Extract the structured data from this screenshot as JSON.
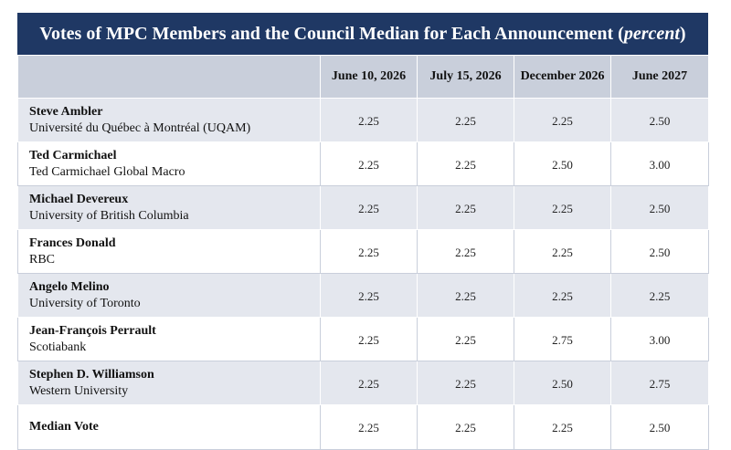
{
  "title": {
    "text": "Votes of MPC Members and the Council Median for Each Announcement (",
    "emphasis": "percent",
    "close": ")"
  },
  "columns": [
    "June 10, 2026",
    "July 15, 2026",
    "December 2026",
    "June 2027"
  ],
  "rows": [
    {
      "name": "Steve Ambler",
      "affiliation": "Université du Québec à Montréal (UQAM)",
      "values": [
        "2.25",
        "2.25",
        "2.25",
        "2.50"
      ]
    },
    {
      "name": "Ted Carmichael",
      "affiliation": "Ted Carmichael Global Macro",
      "values": [
        "2.25",
        "2.25",
        "2.50",
        "3.00"
      ]
    },
    {
      "name": "Michael Devereux",
      "affiliation": "University of British Columbia",
      "values": [
        "2.25",
        "2.25",
        "2.25",
        "2.50"
      ]
    },
    {
      "name": "Frances Donald",
      "affiliation": "RBC",
      "values": [
        "2.25",
        "2.25",
        "2.25",
        "2.50"
      ]
    },
    {
      "name": "Angelo Melino",
      "affiliation": "University of Toronto",
      "values": [
        "2.25",
        "2.25",
        "2.25",
        "2.25"
      ]
    },
    {
      "name": "Jean-François Perrault",
      "affiliation": "Scotiabank",
      "values": [
        "2.25",
        "2.25",
        "2.75",
        "3.00"
      ]
    },
    {
      "name": "Stephen D. Williamson",
      "affiliation": "Western University",
      "values": [
        "2.25",
        "2.25",
        "2.50",
        "2.75"
      ]
    }
  ],
  "median": {
    "name": "Median Vote",
    "values": [
      "2.25",
      "2.25",
      "2.25",
      "2.50"
    ]
  }
}
